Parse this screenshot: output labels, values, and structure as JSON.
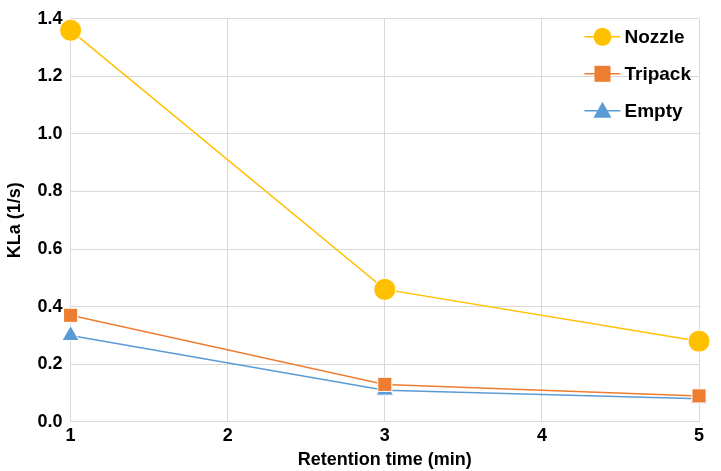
{
  "chart_data": {
    "type": "line",
    "x_label": "Retention time (min)",
    "y_label": "KLa (1/s)",
    "x": [
      1,
      3,
      5
    ],
    "series": [
      {
        "name": "Nozzle",
        "color": "#FFC000",
        "marker": "circle",
        "values": [
          1.36,
          0.46,
          0.28
        ]
      },
      {
        "name": "Tripack",
        "color": "#ED7D31",
        "marker": "square",
        "values": [
          0.37,
          0.13,
          0.09
        ]
      },
      {
        "name": "Empty",
        "color": "#5B9BD5",
        "marker": "triangle",
        "values": [
          0.3,
          0.11,
          0.08
        ]
      }
    ],
    "xlim": [
      1,
      5
    ],
    "xticks": [
      1,
      2,
      3,
      4,
      5
    ],
    "ylim": [
      0,
      1.4
    ],
    "yticks": [
      {
        "value": 0,
        "label": "0.0"
      },
      0.2,
      0.4,
      0.6,
      0.8,
      {
        "value": 1,
        "label": "1.0"
      },
      1.2,
      1.4
    ],
    "grid": true,
    "legend": "upper right"
  }
}
